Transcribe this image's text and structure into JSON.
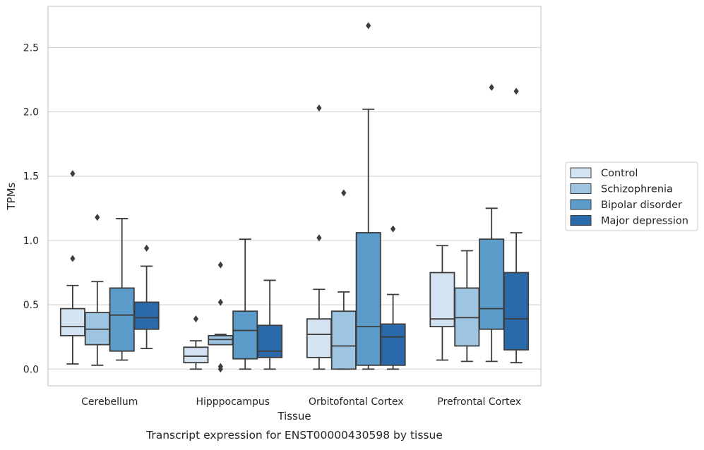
{
  "chart_data": {
    "type": "boxplot",
    "title": "Transcript expression for ENST00000430598 by tissue",
    "xlabel": "Tissue",
    "ylabel": "TPMs",
    "ylim": [
      -0.13,
      2.82
    ],
    "yticks": [
      0.0,
      0.5,
      1.0,
      1.5,
      2.0,
      2.5
    ],
    "ytick_labels": [
      "0.0",
      "0.5",
      "1.0",
      "1.5",
      "2.0",
      "2.5"
    ],
    "grid": "horizontal",
    "legend_position": "right",
    "categories": [
      "Cerebellum",
      "Hipppocampus",
      "Orbitofontal Cortex",
      "Prefrontal Cortex"
    ],
    "series": [
      {
        "name": "Control",
        "color": "#d4e3f1",
        "boxes": [
          {
            "whislo": 0.04,
            "q1": 0.26,
            "med": 0.33,
            "q3": 0.47,
            "whishi": 0.65,
            "fliers": [
              0.86,
              1.52
            ]
          },
          {
            "whislo": 0.0,
            "q1": 0.05,
            "med": 0.1,
            "q3": 0.17,
            "whishi": 0.22,
            "fliers": [
              0.39
            ]
          },
          {
            "whislo": 0.0,
            "q1": 0.09,
            "med": 0.27,
            "q3": 0.39,
            "whishi": 0.62,
            "fliers": [
              1.02,
              2.03
            ]
          },
          {
            "whislo": 0.07,
            "q1": 0.33,
            "med": 0.39,
            "q3": 0.75,
            "whishi": 0.96,
            "fliers": []
          }
        ]
      },
      {
        "name": "Schizophrenia",
        "color": "#9dc4e0",
        "boxes": [
          {
            "whislo": 0.03,
            "q1": 0.19,
            "med": 0.31,
            "q3": 0.44,
            "whishi": 0.68,
            "fliers": [
              1.18
            ]
          },
          {
            "whislo": 0.19,
            "q1": 0.19,
            "med": 0.23,
            "q3": 0.26,
            "whishi": 0.27,
            "fliers": [
              0.0,
              0.02,
              0.52,
              0.81
            ]
          },
          {
            "whislo": 0.0,
            "q1": 0.0,
            "med": 0.18,
            "q3": 0.45,
            "whishi": 0.6,
            "fliers": [
              1.37
            ]
          },
          {
            "whislo": 0.06,
            "q1": 0.18,
            "med": 0.4,
            "q3": 0.63,
            "whishi": 0.92,
            "fliers": []
          }
        ]
      },
      {
        "name": "Bipolar disorder",
        "color": "#5b9cca",
        "boxes": [
          {
            "whislo": 0.07,
            "q1": 0.14,
            "med": 0.42,
            "q3": 0.63,
            "whishi": 1.17,
            "fliers": []
          },
          {
            "whislo": 0.0,
            "q1": 0.08,
            "med": 0.3,
            "q3": 0.45,
            "whishi": 1.01,
            "fliers": []
          },
          {
            "whislo": 0.0,
            "q1": 0.03,
            "med": 0.33,
            "q3": 1.06,
            "whishi": 2.02,
            "fliers": [
              2.67
            ]
          },
          {
            "whislo": 0.06,
            "q1": 0.31,
            "med": 0.47,
            "q3": 1.01,
            "whishi": 1.25,
            "fliers": [
              2.19
            ]
          }
        ]
      },
      {
        "name": "Major depression",
        "color": "#2b6aaa",
        "boxes": [
          {
            "whislo": 0.16,
            "q1": 0.31,
            "med": 0.4,
            "q3": 0.52,
            "whishi": 0.8,
            "fliers": [
              0.94
            ]
          },
          {
            "whislo": 0.0,
            "q1": 0.09,
            "med": 0.14,
            "q3": 0.34,
            "whishi": 0.69,
            "fliers": []
          },
          {
            "whislo": 0.0,
            "q1": 0.03,
            "med": 0.25,
            "q3": 0.35,
            "whishi": 0.58,
            "fliers": [
              1.09
            ]
          },
          {
            "whislo": 0.05,
            "q1": 0.15,
            "med": 0.39,
            "q3": 0.75,
            "whishi": 1.06,
            "fliers": [
              2.16
            ]
          }
        ]
      }
    ]
  }
}
